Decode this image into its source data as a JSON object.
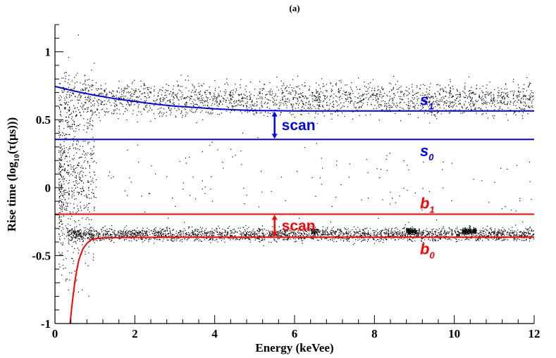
{
  "chart_data": {
    "type": "scatter",
    "title": "(a)",
    "xlabel": "Energy (keVee)",
    "ylabel_main": "Rise time (log",
    "ylabel_sub": "10",
    "ylabel_tail": "(τ(μs)))",
    "xlim": [
      0,
      12
    ],
    "ylim": [
      -1,
      1.2
    ],
    "xticks": [
      0,
      2,
      4,
      6,
      8,
      10,
      12
    ],
    "xtick_labels": [
      "0",
      "2",
      "4",
      "6",
      "8",
      "10",
      "12"
    ],
    "yticks": [
      -1,
      -0.5,
      0,
      0.5,
      1
    ],
    "ytick_labels": [
      "-1",
      "-0.5",
      "0",
      "0.5",
      "1"
    ],
    "colors": {
      "points": "#000000",
      "signal": "#0000ff",
      "background": "#ff0000",
      "axis": "#000000"
    },
    "series": [
      {
        "name": "s1",
        "label": "s",
        "sub": "1",
        "color": "#0000ff",
        "x": [
          0,
          0.5,
          1,
          1.5,
          2,
          2.5,
          3,
          3.5,
          4,
          4.5,
          5,
          6,
          7,
          8,
          9,
          10,
          11,
          12
        ],
        "y": [
          0.745,
          0.71,
          0.68,
          0.655,
          0.635,
          0.615,
          0.6,
          0.59,
          0.58,
          0.573,
          0.568,
          0.565,
          0.565,
          0.565,
          0.565,
          0.565,
          0.565,
          0.565
        ]
      },
      {
        "name": "s0",
        "label": "s",
        "sub": "0",
        "color": "#0000ff",
        "x": [
          0,
          12
        ],
        "y": [
          0.355,
          0.355
        ]
      },
      {
        "name": "b1",
        "label": "b",
        "sub": "1",
        "color": "#ff0000",
        "x": [
          0,
          12
        ],
        "y": [
          -0.195,
          -0.195
        ]
      },
      {
        "name": "b0",
        "label": "b",
        "sub": "0",
        "color": "#ff0000",
        "x": [
          0.38,
          0.42,
          0.46,
          0.5,
          0.55,
          0.6,
          0.7,
          0.8,
          0.9,
          1.0,
          1.2,
          1.5,
          2,
          3,
          6,
          12
        ],
        "y": [
          -1.0,
          -0.88,
          -0.78,
          -0.69,
          -0.6,
          -0.53,
          -0.45,
          -0.41,
          -0.385,
          -0.375,
          -0.37,
          -0.367,
          -0.366,
          -0.365,
          -0.365,
          -0.365
        ]
      }
    ],
    "scan_annotations": [
      {
        "label": "scan",
        "color": "#0000ff",
        "x": 5.5,
        "y_from": 0.355,
        "y_to": 0.565
      },
      {
        "label": "scan",
        "color": "#ff0000",
        "x": 5.5,
        "y_from": -0.365,
        "y_to": -0.195
      }
    ],
    "point_clouds": [
      {
        "note": "signal band",
        "x_range": [
          0.2,
          12
        ],
        "y_center": 0.65,
        "spread": 0.1,
        "count": 2200
      },
      {
        "note": "background band",
        "x_range": [
          0.3,
          12
        ],
        "y_center": -0.345,
        "spread": 0.04,
        "count": 2600
      },
      {
        "note": "low-energy spread",
        "x_range": [
          0.1,
          1.0
        ],
        "y_center": 0.1,
        "spread": 0.6,
        "count": 700
      },
      {
        "note": "sparse between bands",
        "x_range": [
          0.5,
          12
        ],
        "y_center": 0.05,
        "spread": 0.25,
        "count": 150
      },
      {
        "note": "cluster 6.5 keVee",
        "x_range": [
          6.4,
          6.6
        ],
        "y_center": -0.32,
        "spread": 0.02,
        "count": 60
      },
      {
        "note": "cluster 8.9 keVee",
        "x_range": [
          8.8,
          9.05
        ],
        "y_center": -0.32,
        "spread": 0.02,
        "count": 160
      },
      {
        "note": "cluster 10.4 keVee",
        "x_range": [
          10.2,
          10.55
        ],
        "y_center": -0.32,
        "spread": 0.02,
        "count": 200
      }
    ]
  }
}
